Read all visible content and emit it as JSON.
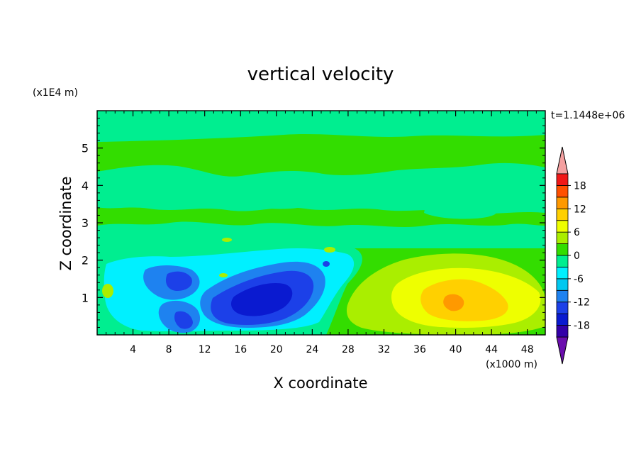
{
  "chart_data": {
    "type": "heatmap",
    "title": "vertical velocity",
    "xlabel": "X coordinate",
    "ylabel": "Z coordinate",
    "x_unit": "(x1000 m)",
    "y_unit": "(x1E4 m)",
    "time_label": "t=1.1448e+06",
    "xlim": [
      0,
      50
    ],
    "ylim": [
      0,
      6
    ],
    "x_ticks": [
      4,
      8,
      12,
      16,
      20,
      24,
      28,
      32,
      36,
      40,
      44,
      48
    ],
    "y_ticks": [
      1,
      2,
      3,
      4,
      5
    ],
    "colorbar": {
      "levels": [
        -21,
        -18,
        -15,
        -12,
        -9,
        -6,
        -3,
        0,
        3,
        6,
        9,
        12,
        15,
        18,
        21
      ],
      "tick_labels": [
        "18",
        "12",
        "6",
        "0",
        "-6",
        "-12",
        "-18"
      ],
      "tick_values": [
        18,
        12,
        6,
        0,
        -6,
        -12,
        -18
      ],
      "colors": [
        "#6a0dad",
        "#3300a8",
        "#0a1ad0",
        "#1c40e8",
        "#1e82f0",
        "#00c8f0",
        "#00f0ff",
        "#00ee90",
        "#33dd00",
        "#aaee00",
        "#eeff00",
        "#ffd000",
        "#ff9900",
        "#ff5000",
        "#f01818",
        "#f4a0a0"
      ]
    },
    "features": [
      {
        "kind": "base",
        "x": 25,
        "z": 3,
        "value": 1
      },
      {
        "kind": "updraft",
        "x": 40,
        "z": 0.95,
        "value": 11
      },
      {
        "kind": "downdraft",
        "x": 19,
        "z": 0.9,
        "value": -13
      },
      {
        "kind": "downdraft",
        "x": 10,
        "z": 1.5,
        "value": -10
      },
      {
        "kind": "downdraft",
        "x": 10,
        "z": 0.4,
        "value": -9
      }
    ]
  }
}
